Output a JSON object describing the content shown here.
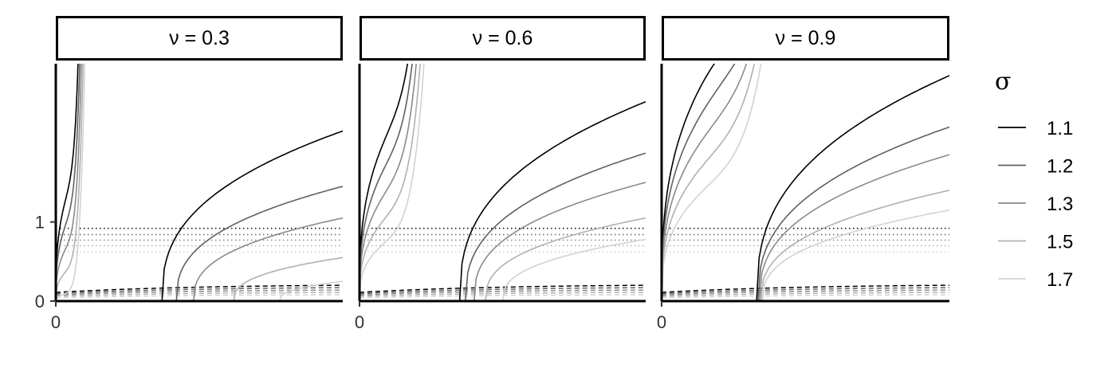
{
  "chart_data": {
    "type": "line",
    "facet_variable": "ν",
    "facets": [
      {
        "label": "ν = 0.3",
        "nu": 0.3
      },
      {
        "label": "ν = 0.6",
        "nu": 0.6
      },
      {
        "label": "ν = 0.9",
        "nu": 0.9
      }
    ],
    "legend": {
      "title": "σ",
      "position": "right",
      "entries": [
        {
          "label": "1.1",
          "color": "#000000"
        },
        {
          "label": "1.2",
          "color": "#606060"
        },
        {
          "label": "1.3",
          "color": "#8a8a8a"
        },
        {
          "label": "1.5",
          "color": "#b0b0b0"
        },
        {
          "label": "1.7",
          "color": "#d2d2d2"
        }
      ]
    },
    "sigma_values": [
      1.1,
      1.2,
      1.3,
      1.5,
      1.7
    ],
    "x_ticks": [
      "0"
    ],
    "y_ticks": [
      {
        "value": 0,
        "label": "0"
      },
      {
        "value": 1,
        "label": "1"
      }
    ],
    "xlim": [
      0,
      1
    ],
    "ylim": [
      0,
      3
    ],
    "xlabel": "",
    "ylabel": "",
    "dotted_levels": [
      0.92,
      0.84,
      0.77,
      0.7,
      0.62
    ],
    "dashed_levels": [
      0.2,
      0.17,
      0.14,
      0.11,
      0.08
    ],
    "steep_left_curve_end_x": {
      "0.3": 0.08,
      "0.6": 0.18,
      "0.9": 0.28
    },
    "right_curve_start_x": {
      "0.3": [
        0.37,
        0.42,
        0.48,
        0.62,
        0.78
      ],
      "0.6": [
        0.35,
        0.37,
        0.4,
        0.44,
        0.5
      ],
      "0.9": [
        0.33,
        0.335,
        0.34,
        0.345,
        0.35
      ]
    },
    "right_curve_end_y": {
      "0.3": [
        2.15,
        1.45,
        1.05,
        0.55,
        0.25
      ],
      "0.6": [
        2.52,
        1.87,
        1.5,
        1.05,
        0.78
      ],
      "0.9": [
        2.85,
        2.2,
        1.85,
        1.4,
        1.15
      ]
    },
    "grid": false
  }
}
